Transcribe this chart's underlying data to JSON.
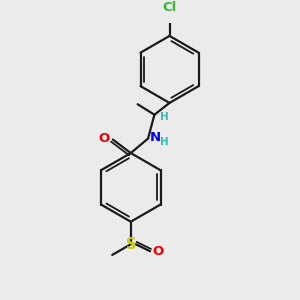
{
  "background_color": "#ebebeb",
  "bond_color": "#1a1a1a",
  "cl_color": "#3ab83a",
  "n_color": "#0000ee",
  "o_color": "#ee0000",
  "s_color": "#cccc00",
  "h_color": "#3ab8b8",
  "figsize": [
    3.0,
    3.0
  ],
  "dpi": 100,
  "xlim": [
    0,
    10
  ],
  "ylim": [
    0,
    10
  ]
}
